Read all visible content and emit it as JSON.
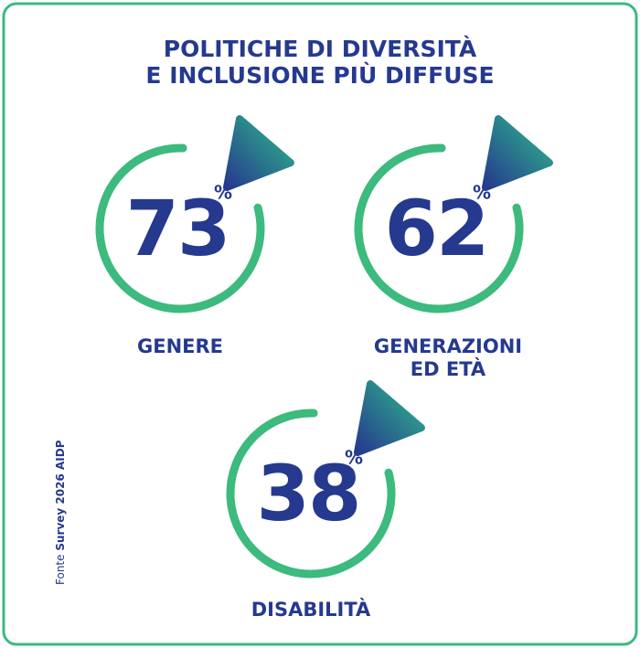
{
  "title": [
    "POLITICHE DI DIVERSITÀ",
    "E INCLUSIONE PIÙ DIFFUSE"
  ],
  "items": [
    {
      "value": 73,
      "unit": "%",
      "label": [
        "GENERE"
      ]
    },
    {
      "value": 62,
      "unit": "%",
      "label": [
        "GENERAZIONI",
        "ED ETÀ"
      ]
    },
    {
      "value": 38,
      "unit": "%",
      "label": [
        "DISABILITÀ"
      ]
    }
  ],
  "source": {
    "prefix": "Fonte",
    "name": "Survey 2026 AIDP"
  }
}
